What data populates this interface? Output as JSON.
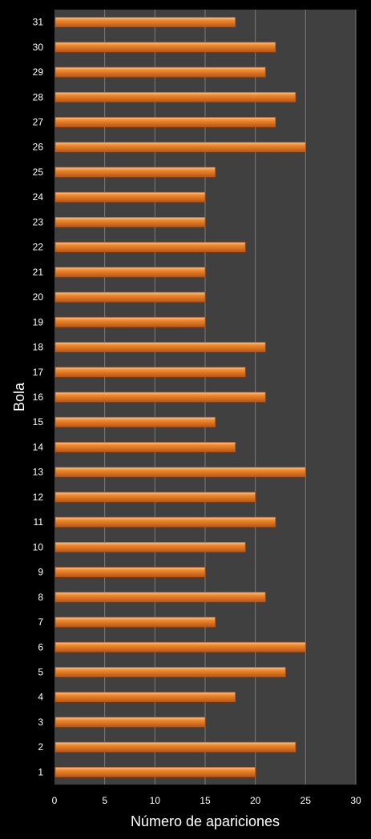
{
  "chart_data": {
    "type": "bar",
    "orientation": "horizontal",
    "categories": [
      "1",
      "2",
      "3",
      "4",
      "5",
      "6",
      "7",
      "8",
      "9",
      "10",
      "11",
      "12",
      "13",
      "14",
      "15",
      "16",
      "17",
      "18",
      "19",
      "20",
      "21",
      "22",
      "23",
      "24",
      "25",
      "26",
      "27",
      "28",
      "29",
      "30",
      "31"
    ],
    "values": [
      20,
      24,
      15,
      18,
      23,
      25,
      16,
      21,
      15,
      19,
      22,
      20,
      25,
      18,
      16,
      21,
      19,
      21,
      15,
      15,
      15,
      19,
      15,
      15,
      16,
      25,
      22,
      24,
      21,
      22,
      18
    ],
    "xlabel": "Número de apariciones",
    "ylabel": "Bola",
    "xlim": [
      0,
      30
    ],
    "xticks": [
      "0",
      "5",
      "10",
      "15",
      "20",
      "25",
      "30"
    ],
    "grid": true,
    "colors": {
      "background": "#000000",
      "plot_area": "#404040",
      "bar": "#f08a2c",
      "bar_highlight": "#ffc58a",
      "bar_shadow": "#b8561a",
      "gridline": "#7a7a7a",
      "text": "#ffffff"
    }
  }
}
